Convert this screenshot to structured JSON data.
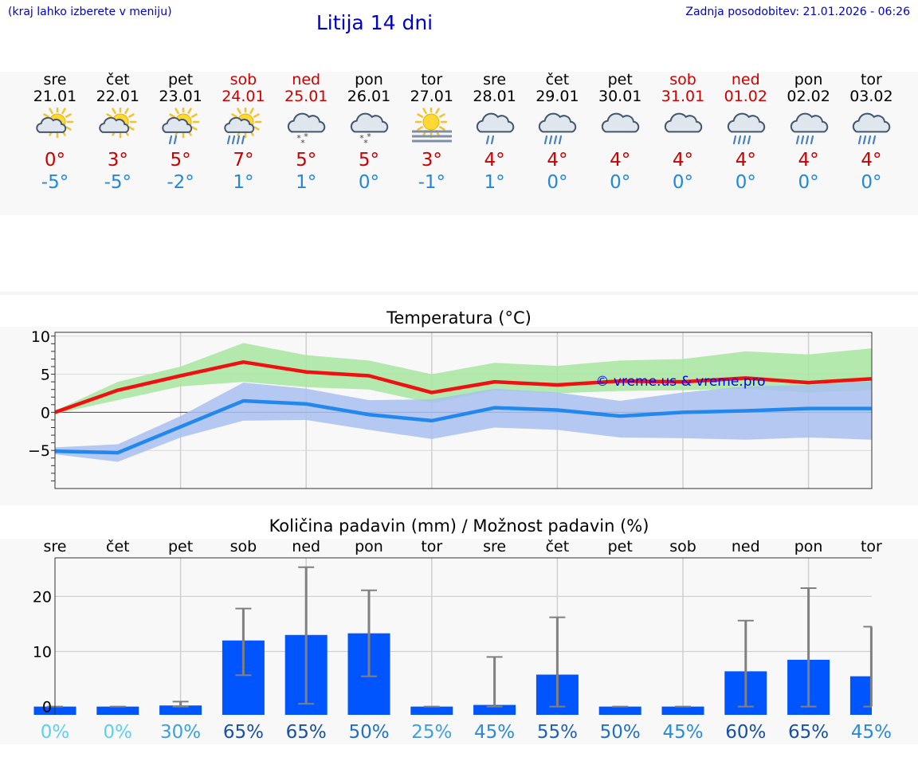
{
  "header": {
    "hint": "(kraj lahko izberete v meniju)",
    "title": "Litija 14 dni",
    "updated": "Zadnja posodobitev: 21.01.2026 - 06:26"
  },
  "colors": {
    "link": "#0000cc",
    "weekend": "#cc0000",
    "max_temp": "#cc0000",
    "min_temp": "#2288dd",
    "max_line": "#ee1111",
    "min_line": "#2288ee",
    "max_band": "#a8e6a0",
    "min_band": "#a8c0f0",
    "bar": "#0055ff",
    "errorbar": "#808080"
  },
  "days": [
    {
      "name": "sre",
      "date": "21.01",
      "weekend": false,
      "icon": "sun-cloud-icon",
      "tmax": "0°",
      "tmin": "-5°"
    },
    {
      "name": "čet",
      "date": "22.01",
      "weekend": false,
      "icon": "sun-cloud-icon",
      "tmax": "3°",
      "tmin": "-5°"
    },
    {
      "name": "pet",
      "date": "23.01",
      "weekend": false,
      "icon": "sun-cloud-light-rain-icon",
      "tmax": "5°",
      "tmin": "-2°"
    },
    {
      "name": "sob",
      "date": "24.01",
      "weekend": true,
      "icon": "sun-cloud-rain-icon",
      "tmax": "7°",
      "tmin": "1°"
    },
    {
      "name": "ned",
      "date": "25.01",
      "weekend": true,
      "icon": "cloud-snow-icon",
      "tmax": "5°",
      "tmin": "1°"
    },
    {
      "name": "pon",
      "date": "26.01",
      "weekend": false,
      "icon": "cloud-snow-icon",
      "tmax": "5°",
      "tmin": "0°"
    },
    {
      "name": "tor",
      "date": "27.01",
      "weekend": false,
      "icon": "sun-fog-icon",
      "tmax": "3°",
      "tmin": "-1°"
    },
    {
      "name": "sre",
      "date": "28.01",
      "weekend": false,
      "icon": "cloud-light-rain-icon",
      "tmax": "4°",
      "tmin": "1°"
    },
    {
      "name": "čet",
      "date": "29.01",
      "weekend": false,
      "icon": "cloud-rain-icon",
      "tmax": "4°",
      "tmin": "0°"
    },
    {
      "name": "pet",
      "date": "30.01",
      "weekend": false,
      "icon": "cloud-icon",
      "tmax": "4°",
      "tmin": "0°"
    },
    {
      "name": "sob",
      "date": "31.01",
      "weekend": true,
      "icon": "cloud-icon",
      "tmax": "4°",
      "tmin": "0°"
    },
    {
      "name": "ned",
      "date": "01.02",
      "weekend": true,
      "icon": "cloud-rain-icon",
      "tmax": "4°",
      "tmin": "0°"
    },
    {
      "name": "pon",
      "date": "02.02",
      "weekend": false,
      "icon": "cloud-rain-icon",
      "tmax": "4°",
      "tmin": "0°"
    },
    {
      "name": "tor",
      "date": "03.02",
      "weekend": false,
      "icon": "cloud-rain-icon",
      "tmax": "4°",
      "tmin": "0°"
    }
  ],
  "chart_data": [
    {
      "type": "line",
      "title": "Temperatura (°C)",
      "watermark": "© vreme.us & vreme.pro",
      "ylim": [
        -10,
        10.5
      ],
      "yticks": [
        10,
        5,
        0,
        -5
      ],
      "ytick_labels": [
        "10",
        "5",
        "0",
        "−5"
      ],
      "grid": true,
      "series": [
        {
          "name": "max",
          "values": [
            0,
            2.9,
            4.8,
            6.6,
            5.3,
            4.8,
            2.6,
            4.0,
            3.6,
            4.1,
            4.0,
            4.5,
            3.9,
            4.4
          ],
          "band_low": [
            -0.2,
            1.6,
            3.4,
            4.0,
            3.3,
            3.0,
            1.2,
            2.9,
            2.5,
            2.8,
            2.9,
            3.1,
            2.6,
            2.9
          ],
          "band_high": [
            0.2,
            4.0,
            6.0,
            9.1,
            7.5,
            6.8,
            5.0,
            6.5,
            6.1,
            6.8,
            7.0,
            8.0,
            7.6,
            8.4
          ]
        },
        {
          "name": "min",
          "values": [
            -5.1,
            -5.3,
            -1.9,
            1.5,
            1.1,
            -0.3,
            -1.1,
            0.6,
            0.3,
            -0.5,
            0.0,
            0.2,
            0.5,
            0.5
          ],
          "band_low": [
            -5.5,
            -6.5,
            -3.3,
            -1.1,
            -1.0,
            -2.3,
            -3.5,
            -2.0,
            -2.3,
            -3.3,
            -3.4,
            -3.6,
            -3.3,
            -3.6
          ],
          "band_high": [
            -4.6,
            -4.2,
            -0.5,
            3.9,
            3.1,
            1.6,
            1.7,
            3.1,
            2.6,
            1.5,
            2.6,
            3.4,
            3.6,
            4.1
          ]
        }
      ]
    },
    {
      "type": "bar",
      "title": "Količina padavin (mm) / Možnost padavin (%)",
      "categories": [
        "sre",
        "čet",
        "pet",
        "sob",
        "ned",
        "pon",
        "tor",
        "sre",
        "čet",
        "pet",
        "sob",
        "ned",
        "pon",
        "tor"
      ],
      "values": [
        0,
        0,
        0.2,
        12,
        13,
        13.3,
        0,
        0.3,
        5.8,
        0,
        0,
        6.4,
        8.5,
        5.5
      ],
      "error_low": [
        0,
        0,
        0,
        5.7,
        0.5,
        5.5,
        0,
        0,
        0,
        0,
        0,
        0,
        0,
        0
      ],
      "error_high": [
        0,
        0,
        0.9,
        17.8,
        25.3,
        21.1,
        0,
        9.0,
        16.2,
        0,
        0,
        15.6,
        21.5,
        14.5
      ],
      "probability": [
        "0%",
        "0%",
        "30%",
        "65%",
        "65%",
        "50%",
        "25%",
        "45%",
        "55%",
        "50%",
        "45%",
        "60%",
        "65%",
        "45%"
      ],
      "ylim": [
        -1.5,
        27
      ],
      "yticks": [
        0,
        10,
        20
      ],
      "grid": true
    }
  ]
}
